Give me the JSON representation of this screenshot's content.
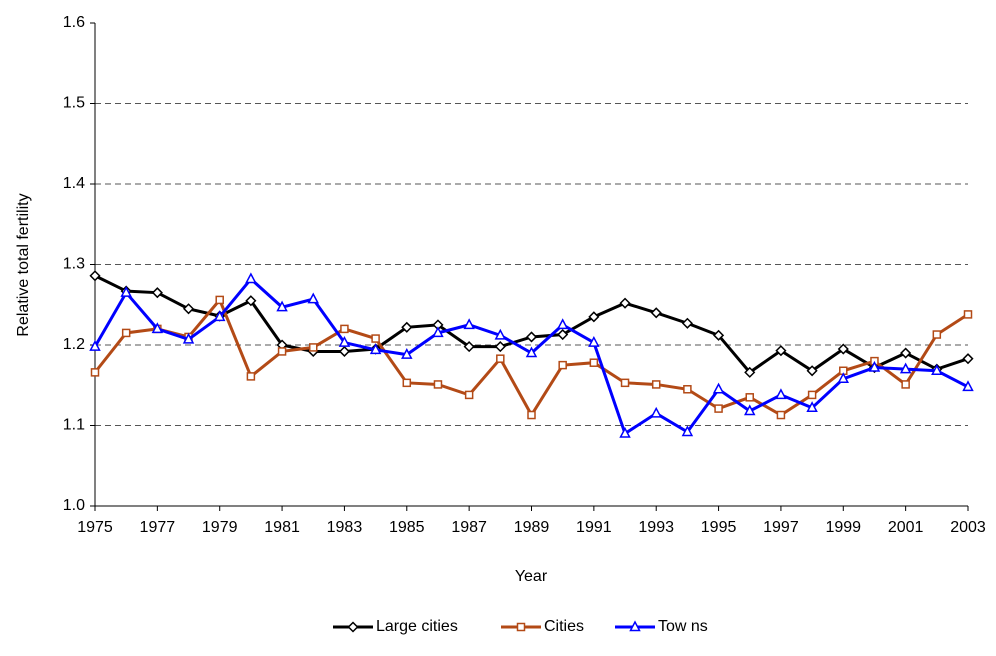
{
  "chart_data": {
    "type": "line",
    "x_label": "Year",
    "y_label": "Relative total fertility",
    "x": [
      1975,
      1976,
      1977,
      1978,
      1979,
      1980,
      1981,
      1982,
      1983,
      1984,
      1985,
      1986,
      1987,
      1988,
      1989,
      1990,
      1991,
      1992,
      1993,
      1994,
      1995,
      1996,
      1997,
      1998,
      1999,
      2000,
      2001,
      2002,
      2003
    ],
    "series": [
      {
        "name": "Large cities",
        "color": "#000000",
        "marker": "diamond",
        "values": [
          1.286,
          1.267,
          1.265,
          1.245,
          1.236,
          1.255,
          1.2,
          1.192,
          1.192,
          1.195,
          1.222,
          1.225,
          1.198,
          1.198,
          1.21,
          1.213,
          1.235,
          1.252,
          1.24,
          1.227,
          1.212,
          1.166,
          1.193,
          1.168,
          1.195,
          1.172,
          1.19,
          1.17,
          1.183
        ]
      },
      {
        "name": "Cities",
        "color": "#b34a16",
        "marker": "square",
        "values": [
          1.166,
          1.215,
          1.22,
          1.21,
          1.256,
          1.161,
          1.192,
          1.197,
          1.22,
          1.208,
          1.153,
          1.151,
          1.138,
          1.183,
          1.113,
          1.175,
          1.178,
          1.153,
          1.151,
          1.145,
          1.121,
          1.135,
          1.113,
          1.138,
          1.168,
          1.18,
          1.151,
          1.213,
          1.238
        ]
      },
      {
        "name": "Tow ns",
        "color": "#0000ff",
        "marker": "triangle",
        "values": [
          1.198,
          1.265,
          1.22,
          1.207,
          1.235,
          1.282,
          1.247,
          1.257,
          1.203,
          1.194,
          1.188,
          1.215,
          1.225,
          1.212,
          1.19,
          1.225,
          1.203,
          1.09,
          1.115,
          1.092,
          1.145,
          1.118,
          1.138,
          1.122,
          1.158,
          1.172,
          1.17,
          1.168,
          1.148
        ]
      }
    ],
    "xlim": [
      1975,
      2003
    ],
    "xticks": [
      1975,
      1977,
      1979,
      1981,
      1983,
      1985,
      1987,
      1989,
      1991,
      1993,
      1995,
      1997,
      1999,
      2001,
      2003
    ],
    "ylim": [
      1,
      1.6
    ],
    "yticks": [
      {
        "value": 1,
        "label": "1.0"
      },
      1.1,
      1.2,
      1.3,
      1.4,
      1.5,
      1.6
    ],
    "grid": true,
    "legend": "bottom"
  }
}
